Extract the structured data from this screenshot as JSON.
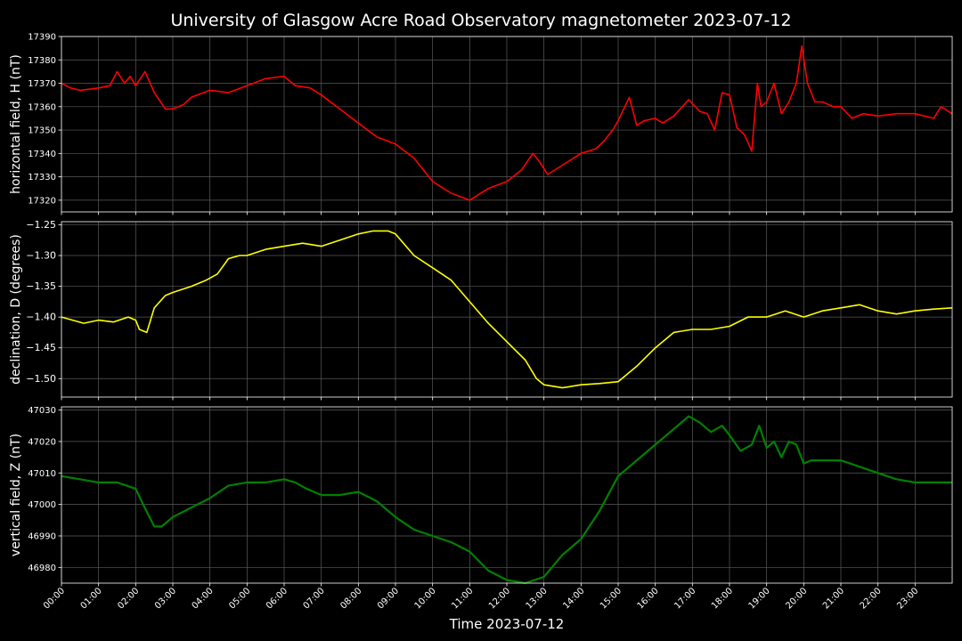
{
  "chart_data": {
    "type": "line",
    "title": "University of Glasgow Acre Road Observatory magnetometer 2023-07-12",
    "xlabel": "Time 2023-07-12",
    "x_range_hours": [
      0,
      24
    ],
    "x_ticks": [
      "00:00",
      "01:00",
      "02:00",
      "03:00",
      "04:00",
      "05:00",
      "06:00",
      "07:00",
      "08:00",
      "09:00",
      "10:00",
      "11:00",
      "12:00",
      "13:00",
      "14:00",
      "15:00",
      "16:00",
      "17:00",
      "18:00",
      "19:00",
      "20:00",
      "21:00",
      "22:00",
      "23:00"
    ],
    "grid": true,
    "background": "#000000",
    "panels": [
      {
        "ylabel": "horizontal field, H (nT)",
        "color": "#ff0000",
        "ylim": [
          17315,
          17390
        ],
        "yticks": [
          "17320",
          "17330",
          "17340",
          "17350",
          "17360",
          "17370",
          "17380",
          "17390"
        ],
        "ytick_values": [
          17320,
          17330,
          17340,
          17350,
          17360,
          17370,
          17380,
          17390
        ],
        "hours": [
          0,
          0.25,
          0.5,
          1.0,
          1.3,
          1.5,
          1.7,
          1.85,
          2.0,
          2.25,
          2.5,
          2.8,
          3.0,
          3.3,
          3.5,
          4.0,
          4.5,
          5.0,
          5.5,
          6.0,
          6.3,
          6.7,
          7.0,
          7.5,
          8.0,
          8.5,
          9.0,
          9.5,
          10.0,
          10.5,
          11.0,
          11.5,
          12.0,
          12.4,
          12.7,
          12.9,
          13.1,
          13.5,
          14.0,
          14.4,
          14.6,
          14.85,
          15.0,
          15.3,
          15.5,
          15.7,
          16.0,
          16.2,
          16.5,
          16.9,
          17.2,
          17.4,
          17.6,
          17.8,
          18.0,
          18.2,
          18.4,
          18.6,
          18.75,
          18.85,
          19.0,
          19.2,
          19.4,
          19.6,
          19.8,
          19.95,
          20.1,
          20.3,
          20.5,
          20.8,
          21.0,
          21.3,
          21.6,
          22.0,
          22.5,
          23.0,
          23.5,
          23.7,
          24.0
        ],
        "values": [
          17370,
          17368,
          17367,
          17368,
          17369,
          17375,
          17370,
          17373,
          17369,
          17375,
          17366,
          17359,
          17359,
          17361,
          17364,
          17367,
          17366,
          17369,
          17372,
          17373,
          17369,
          17368,
          17365,
          17359,
          17353,
          17347,
          17344,
          17338,
          17328,
          17323,
          17320,
          17325,
          17328,
          17333,
          17340,
          17336,
          17331,
          17335,
          17340,
          17342,
          17345,
          17350,
          17354,
          17364,
          17352,
          17354,
          17355,
          17353,
          17356,
          17363,
          17358,
          17357,
          17350,
          17366,
          17365,
          17351,
          17348,
          17341,
          17370,
          17360,
          17362,
          17370,
          17357,
          17362,
          17370,
          17386,
          17370,
          17362,
          17362,
          17360,
          17360,
          17355,
          17357,
          17356,
          17357,
          17357,
          17355,
          17360,
          17357
        ]
      },
      {
        "ylabel": "declination, D (degrees)",
        "color": "#ffff00",
        "ylim": [
          -1.53,
          -1.245
        ],
        "yticks": [
          "−1.25",
          "−1.30",
          "−1.35",
          "−1.40",
          "−1.45",
          "−1.50"
        ],
        "ytick_values": [
          -1.25,
          -1.3,
          -1.35,
          -1.4,
          -1.45,
          -1.5
        ],
        "hours": [
          0,
          0.3,
          0.6,
          1.0,
          1.4,
          1.8,
          2.0,
          2.1,
          2.3,
          2.5,
          2.8,
          3.0,
          3.5,
          3.9,
          4.2,
          4.5,
          4.8,
          5.0,
          5.5,
          6.0,
          6.5,
          7.0,
          7.5,
          8.0,
          8.4,
          8.8,
          9.0,
          9.5,
          10.0,
          10.5,
          11.0,
          11.5,
          12.0,
          12.5,
          12.8,
          13.0,
          13.5,
          14.0,
          14.5,
          15.0,
          15.5,
          16.0,
          16.5,
          17.0,
          17.5,
          18.0,
          18.5,
          19.0,
          19.5,
          20.0,
          20.5,
          21.0,
          21.5,
          22.0,
          22.5,
          23.0,
          23.5,
          24.0
        ],
        "values": [
          -1.4,
          -1.405,
          -1.41,
          -1.405,
          -1.408,
          -1.4,
          -1.405,
          -1.42,
          -1.425,
          -1.385,
          -1.365,
          -1.36,
          -1.35,
          -1.34,
          -1.33,
          -1.305,
          -1.3,
          -1.3,
          -1.29,
          -1.285,
          -1.28,
          -1.285,
          -1.275,
          -1.265,
          -1.26,
          -1.26,
          -1.265,
          -1.3,
          -1.32,
          -1.34,
          -1.375,
          -1.41,
          -1.44,
          -1.47,
          -1.5,
          -1.51,
          -1.515,
          -1.51,
          -1.508,
          -1.505,
          -1.48,
          -1.45,
          -1.425,
          -1.42,
          -1.42,
          -1.415,
          -1.4,
          -1.4,
          -1.39,
          -1.4,
          -1.39,
          -1.385,
          -1.38,
          -1.39,
          -1.395,
          -1.39,
          -1.387,
          -1.385
        ]
      },
      {
        "ylabel": "vertical field, Z (nT)",
        "color": "#008000",
        "ylim": [
          46975,
          47031
        ],
        "yticks": [
          "46980",
          "46990",
          "47000",
          "47010",
          "47020",
          "47030"
        ],
        "ytick_values": [
          46980,
          46990,
          47000,
          47010,
          47020,
          47030
        ],
        "hours": [
          0,
          0.5,
          1.0,
          1.5,
          2.0,
          2.2,
          2.5,
          2.7,
          3.0,
          3.5,
          4.0,
          4.5,
          5.0,
          5.5,
          6.0,
          6.3,
          6.6,
          7.0,
          7.5,
          8.0,
          8.5,
          9.0,
          9.5,
          10.0,
          10.5,
          11.0,
          11.5,
          12.0,
          12.5,
          13.0,
          13.5,
          14.0,
          14.5,
          15.0,
          15.5,
          16.0,
          16.5,
          16.9,
          17.2,
          17.5,
          17.8,
          18.0,
          18.3,
          18.6,
          18.8,
          19.0,
          19.2,
          19.4,
          19.6,
          19.8,
          20.0,
          20.2,
          20.5,
          21.0,
          21.5,
          22.0,
          22.5,
          23.0,
          23.5,
          24.0
        ],
        "values": [
          47009,
          47008,
          47007,
          47007,
          47005,
          47000,
          46993,
          46993,
          46996,
          46999,
          47002,
          47006,
          47007,
          47007,
          47008,
          47007,
          47005,
          47003,
          47003,
          47004,
          47001,
          46996,
          46992,
          46990,
          46988,
          46985,
          46979,
          46976,
          46975,
          46977,
          46984,
          46989,
          46998,
          47009,
          47014,
          47019,
          47024,
          47028,
          47026,
          47023,
          47025,
          47022,
          47017,
          47019,
          47025,
          47018,
          47020,
          47015,
          47020,
          47019,
          47013,
          47014,
          47014,
          47014,
          47012,
          47010,
          47008,
          47007,
          47007,
          47007
        ]
      }
    ]
  }
}
